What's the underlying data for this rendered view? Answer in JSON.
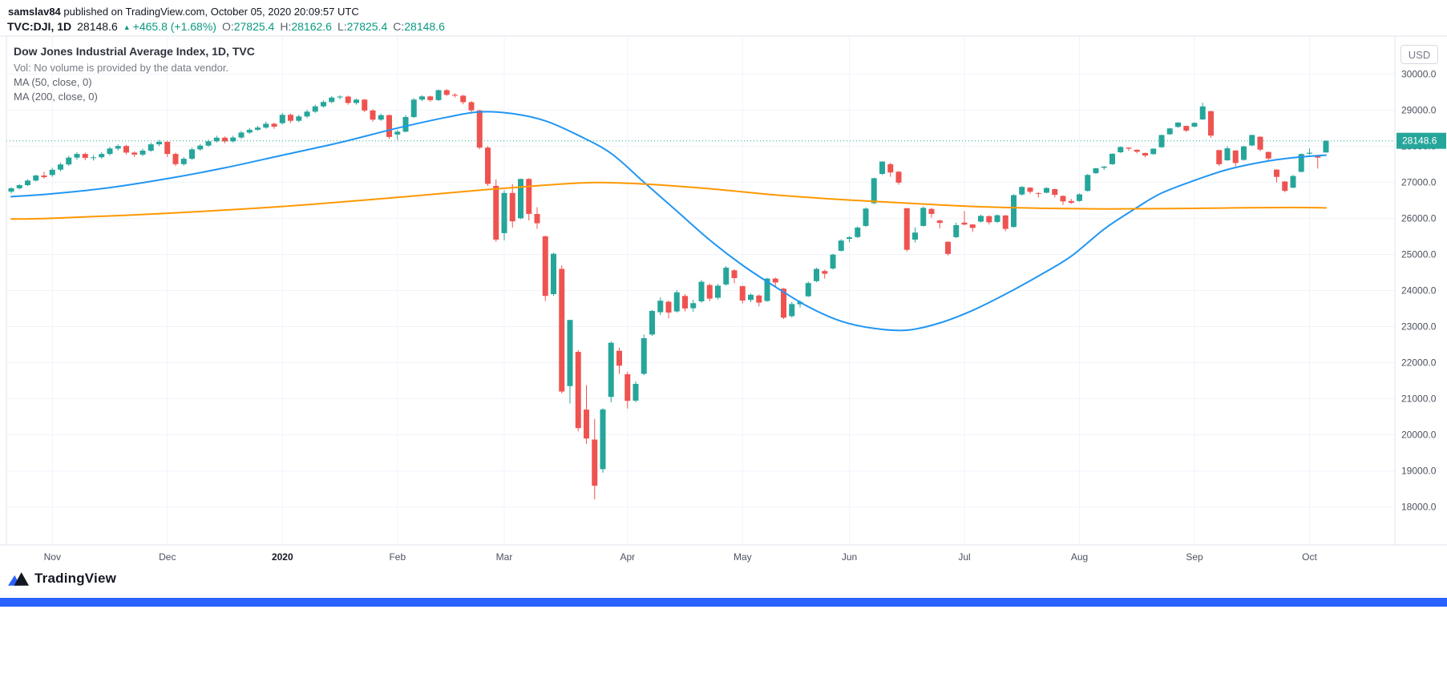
{
  "publish_bar": {
    "username": "samslav84",
    "text": " published on TradingView.com, October 05, 2020 20:09:57 UTC"
  },
  "symbol_bar": {
    "symbol": "TVC:DJI, 1D",
    "last_price": "28148.6",
    "up_triangle": "▲",
    "change": "+465.8 (+1.68%)",
    "ohlc": [
      {
        "label": "O:",
        "value": "27825.4"
      },
      {
        "label": "H:",
        "value": "28162.6"
      },
      {
        "label": "L:",
        "value": "27825.4"
      },
      {
        "label": "C:",
        "value": "28148.6"
      }
    ]
  },
  "legend": {
    "title": "Dow Jones Industrial Average Index, 1D, TVC",
    "volume_note": "Vol: No volume is provided by the data vendor.",
    "ma50_label": "MA (50, close, 0)",
    "ma200_label": "MA (200, close, 0)"
  },
  "price_axis": {
    "currency": "USD",
    "last_price_label": "28148.6"
  },
  "footer": {
    "logo_text": "TradingView"
  },
  "colors": {
    "up": "#26a69a",
    "down": "#ef5350",
    "ma50": "#2196f3",
    "ma200": "#ff9800",
    "positive_text": "#089981",
    "grid": "#f0f3fa",
    "border": "#e0e3eb",
    "accent_bar": "#2962ff",
    "last_price_badge": "#26a69a"
  },
  "chart_data": {
    "type": "candlestick",
    "title": "Dow Jones Industrial Average Index, 1D, TVC",
    "symbol": "TVC:DJI",
    "interval": "1D",
    "currency": "USD",
    "grid": true,
    "legend_position": "top-left",
    "x_range": [
      "Late Oct 2019",
      "Oct 05 2020"
    ],
    "y_axis": {
      "min": 16950,
      "max": 31050,
      "tick_step": 1000,
      "tick_labels": [
        "30000.0",
        "29000.0",
        "28000.0",
        "27000.0",
        "26000.0",
        "25000.0",
        "24000.0",
        "23000.0",
        "22000.0",
        "21000.0",
        "20000.0",
        "19000.0",
        "18000.0"
      ]
    },
    "last_price": 28148.6,
    "month_ticks": [
      {
        "i": 5,
        "label": "Nov"
      },
      {
        "i": 19,
        "label": "Dec"
      },
      {
        "i": 33,
        "label": "2020",
        "year": true
      },
      {
        "i": 47,
        "label": "Feb"
      },
      {
        "i": 60,
        "label": "Mar"
      },
      {
        "i": 75,
        "label": "Apr"
      },
      {
        "i": 89,
        "label": "May"
      },
      {
        "i": 102,
        "label": "Jun"
      },
      {
        "i": 116,
        "label": "Jul"
      },
      {
        "i": 130,
        "label": "Aug"
      },
      {
        "i": 144,
        "label": "Sep"
      },
      {
        "i": 158,
        "label": "Oct"
      }
    ],
    "candles_ohlc": [
      [
        26740,
        26860,
        26690,
        26833
      ],
      [
        26833,
        26950,
        26800,
        26920
      ],
      [
        26920,
        27080,
        26890,
        27046
      ],
      [
        27046,
        27210,
        27020,
        27186
      ],
      [
        27186,
        27290,
        27100,
        27140
      ],
      [
        27200,
        27400,
        27150,
        27347
      ],
      [
        27347,
        27540,
        27300,
        27492
      ],
      [
        27492,
        27730,
        27450,
        27681
      ],
      [
        27681,
        27830,
        27620,
        27783
      ],
      [
        27783,
        27820,
        27610,
        27675
      ],
      [
        27675,
        27750,
        27600,
        27691
      ],
      [
        27691,
        27840,
        27650,
        27783
      ],
      [
        27783,
        27980,
        27740,
        27934
      ],
      [
        27934,
        28050,
        27880,
        28004
      ],
      [
        28004,
        28040,
        27770,
        27821
      ],
      [
        27821,
        27860,
        27700,
        27766
      ],
      [
        27766,
        27930,
        27720,
        27876
      ],
      [
        27876,
        28100,
        27840,
        28051
      ],
      [
        28051,
        28175,
        28000,
        28121
      ],
      [
        28121,
        28130,
        27700,
        27783
      ],
      [
        27783,
        27820,
        27450,
        27502
      ],
      [
        27502,
        27700,
        27460,
        27650
      ],
      [
        27650,
        27960,
        27620,
        27910
      ],
      [
        27910,
        28060,
        27870,
        28015
      ],
      [
        28015,
        28180,
        27980,
        28135
      ],
      [
        28135,
        28290,
        28100,
        28235
      ],
      [
        28235,
        28270,
        28080,
        28132
      ],
      [
        28132,
        28290,
        28100,
        28239
      ],
      [
        28239,
        28420,
        28200,
        28376
      ],
      [
        28376,
        28500,
        28340,
        28455
      ],
      [
        28455,
        28560,
        28420,
        28515
      ],
      [
        28515,
        28680,
        28480,
        28621
      ],
      [
        28621,
        28650,
        28480,
        28538
      ],
      [
        28638,
        28920,
        28600,
        28868
      ],
      [
        28868,
        28900,
        28640,
        28703
      ],
      [
        28703,
        28870,
        28660,
        28823
      ],
      [
        28823,
        29010,
        28780,
        28956
      ],
      [
        28956,
        29150,
        28920,
        29103
      ],
      [
        29103,
        29270,
        29070,
        29223
      ],
      [
        29223,
        29390,
        29190,
        29348
      ],
      [
        29348,
        29410,
        29300,
        29373
      ],
      [
        29373,
        29400,
        29150,
        29196
      ],
      [
        29196,
        29320,
        29150,
        29290
      ],
      [
        29290,
        29310,
        28940,
        28989
      ],
      [
        28989,
        29020,
        28680,
        28734
      ],
      [
        28734,
        28900,
        28700,
        28859
      ],
      [
        28859,
        28880,
        28200,
        28256
      ],
      [
        28320,
        28450,
        28170,
        28400
      ],
      [
        28400,
        28860,
        28380,
        28807
      ],
      [
        28807,
        29330,
        28780,
        29290
      ],
      [
        29290,
        29410,
        29250,
        29379
      ],
      [
        29379,
        29400,
        29230,
        29276
      ],
      [
        29276,
        29569,
        29250,
        29551
      ],
      [
        29551,
        29580,
        29390,
        29423
      ],
      [
        29423,
        29470,
        29350,
        29398
      ],
      [
        29398,
        29420,
        29160,
        29219
      ],
      [
        29219,
        29250,
        28900,
        28992
      ],
      [
        28992,
        29000,
        27910,
        27960
      ],
      [
        27960,
        28000,
        26900,
        26957
      ],
      [
        26900,
        27080,
        25350,
        25409
      ],
      [
        25590,
        26780,
        25390,
        26703
      ],
      [
        26703,
        26950,
        25740,
        25917
      ],
      [
        26000,
        27100,
        25980,
        27090
      ],
      [
        27090,
        27110,
        25940,
        26121
      ],
      [
        26121,
        26310,
        25710,
        25864
      ],
      [
        25500,
        25520,
        23710,
        23851
      ],
      [
        23900,
        25050,
        23850,
        25018
      ],
      [
        24600,
        24700,
        21150,
        21200
      ],
      [
        21350,
        23190,
        20870,
        23185
      ],
      [
        22300,
        22350,
        20100,
        20188
      ],
      [
        20700,
        21380,
        19750,
        19898
      ],
      [
        19870,
        20440,
        18213,
        18591
      ],
      [
        19050,
        20740,
        18950,
        20704
      ],
      [
        21050,
        22590,
        20900,
        22552
      ],
      [
        22330,
        22420,
        21690,
        21917
      ],
      [
        21680,
        21750,
        20730,
        20943
      ],
      [
        20950,
        21480,
        20900,
        21413
      ],
      [
        21690,
        22780,
        21650,
        22679
      ],
      [
        22780,
        23460,
        22740,
        23433
      ],
      [
        23400,
        23810,
        23320,
        23719
      ],
      [
        23690,
        23720,
        23230,
        23390
      ],
      [
        23420,
        24010,
        23390,
        23949
      ],
      [
        23850,
        23900,
        23420,
        23504
      ],
      [
        23510,
        23740,
        23410,
        23650
      ],
      [
        23700,
        24290,
        23660,
        24242
      ],
      [
        24150,
        24190,
        23700,
        23775
      ],
      [
        23800,
        24180,
        23750,
        24133
      ],
      [
        24170,
        24680,
        24130,
        24633
      ],
      [
        24560,
        24590,
        24200,
        24345
      ],
      [
        24120,
        24140,
        23640,
        23723
      ],
      [
        23740,
        23920,
        23680,
        23883
      ],
      [
        23860,
        23890,
        23560,
        23664
      ],
      [
        23710,
        24350,
        23690,
        24331
      ],
      [
        24330,
        24360,
        24090,
        24221
      ],
      [
        24050,
        24070,
        23210,
        23247
      ],
      [
        23290,
        23680,
        23250,
        23625
      ],
      [
        23620,
        23730,
        23530,
        23685
      ],
      [
        23840,
        24250,
        23820,
        24206
      ],
      [
        24260,
        24630,
        24230,
        24597
      ],
      [
        24540,
        24580,
        24330,
        24465
      ],
      [
        24610,
        25020,
        24580,
        24995
      ],
      [
        25100,
        25420,
        25080,
        25383
      ],
      [
        25430,
        25510,
        25340,
        25475
      ],
      [
        25480,
        25780,
        25450,
        25742
      ],
      [
        25790,
        26300,
        25760,
        26269
      ],
      [
        26420,
        27130,
        26390,
        27110
      ],
      [
        27230,
        27580,
        27200,
        27572
      ],
      [
        27500,
        27540,
        27150,
        27272
      ],
      [
        27290,
        27310,
        26930,
        26989
      ],
      [
        26280,
        26290,
        25080,
        25128
      ],
      [
        25410,
        25750,
        25330,
        25605
      ],
      [
        25790,
        26330,
        25770,
        26289
      ],
      [
        26260,
        26290,
        26020,
        26119
      ],
      [
        25940,
        25960,
        25720,
        25871
      ],
      [
        25350,
        25360,
        24970,
        25015
      ],
      [
        25480,
        25880,
        25450,
        25812
      ],
      [
        25880,
        26200,
        25800,
        25827
      ],
      [
        25830,
        25840,
        25620,
        25734
      ],
      [
        25910,
        26100,
        25880,
        26067
      ],
      [
        26060,
        26080,
        25830,
        25890
      ],
      [
        25900,
        26110,
        25870,
        26085
      ],
      [
        26080,
        26090,
        25640,
        25706
      ],
      [
        25760,
        26670,
        25740,
        26642
      ],
      [
        26660,
        26890,
        26630,
        26870
      ],
      [
        26850,
        26860,
        26680,
        26734
      ],
      [
        26700,
        26720,
        26580,
        26680
      ],
      [
        26710,
        26860,
        26690,
        26840
      ],
      [
        26810,
        26820,
        26580,
        26652
      ],
      [
        26620,
        26640,
        26370,
        26469
      ],
      [
        26480,
        26540,
        26400,
        26428
      ],
      [
        26480,
        26690,
        26460,
        26664
      ],
      [
        26760,
        27230,
        26740,
        27201
      ],
      [
        27250,
        27400,
        27230,
        27386
      ],
      [
        27400,
        27450,
        27340,
        27433
      ],
      [
        27500,
        27800,
        27480,
        27791
      ],
      [
        27830,
        27990,
        27810,
        27976
      ],
      [
        27960,
        27970,
        27870,
        27931
      ],
      [
        27900,
        27910,
        27800,
        27844
      ],
      [
        27810,
        27820,
        27690,
        27739
      ],
      [
        27780,
        27940,
        27760,
        27930
      ],
      [
        27970,
        28320,
        27950,
        28308
      ],
      [
        28330,
        28500,
        28310,
        28492
      ],
      [
        28530,
        28660,
        28510,
        28653
      ],
      [
        28560,
        28570,
        28390,
        28430
      ],
      [
        28540,
        28660,
        28520,
        28645
      ],
      [
        28740,
        29200,
        28720,
        29100
      ],
      [
        28970,
        28980,
        28230,
        28292
      ],
      [
        27890,
        27900,
        27450,
        27500
      ],
      [
        27610,
        28000,
        27590,
        27940
      ],
      [
        27880,
        27890,
        27440,
        27534
      ],
      [
        27620,
        28010,
        27600,
        27993
      ],
      [
        28020,
        28320,
        28000,
        28308
      ],
      [
        28260,
        28270,
        27860,
        27902
      ],
      [
        27840,
        27850,
        27600,
        27657
      ],
      [
        27350,
        27360,
        26990,
        27147
      ],
      [
        27020,
        27030,
        26720,
        26763
      ],
      [
        26850,
        27200,
        26830,
        27174
      ],
      [
        27290,
        27800,
        27270,
        27782
      ],
      [
        27790,
        27940,
        27760,
        27817
      ],
      [
        27740,
        27750,
        27380,
        27683
      ],
      [
        27825.4,
        28162.6,
        27825.4,
        28148.6
      ]
    ],
    "overlays": [
      {
        "id": "ma50",
        "name": "MA (50, close, 0)",
        "color": "#2196f3",
        "points": [
          [
            0,
            26600
          ],
          [
            5,
            26680
          ],
          [
            12,
            26850
          ],
          [
            19,
            27100
          ],
          [
            26,
            27400
          ],
          [
            33,
            27750
          ],
          [
            40,
            28100
          ],
          [
            47,
            28500
          ],
          [
            53,
            28800
          ],
          [
            57,
            28950
          ],
          [
            61,
            28900
          ],
          [
            65,
            28700
          ],
          [
            69,
            28300
          ],
          [
            73,
            27800
          ],
          [
            77,
            27000
          ],
          [
            81,
            26200
          ],
          [
            85,
            25400
          ],
          [
            89,
            24700
          ],
          [
            93,
            24100
          ],
          [
            97,
            23550
          ],
          [
            101,
            23150
          ],
          [
            105,
            22950
          ],
          [
            109,
            22900
          ],
          [
            113,
            23100
          ],
          [
            117,
            23450
          ],
          [
            121,
            23900
          ],
          [
            125,
            24400
          ],
          [
            129,
            24950
          ],
          [
            133,
            25700
          ],
          [
            137,
            26300
          ],
          [
            140,
            26700
          ],
          [
            144,
            27050
          ],
          [
            148,
            27350
          ],
          [
            152,
            27550
          ],
          [
            156,
            27680
          ],
          [
            160,
            27750
          ]
        ]
      },
      {
        "id": "ma200",
        "name": "MA (200, close, 0)",
        "color": "#ff9800",
        "points": [
          [
            0,
            25980
          ],
          [
            5,
            26000
          ],
          [
            19,
            26140
          ],
          [
            33,
            26330
          ],
          [
            47,
            26580
          ],
          [
            57,
            26780
          ],
          [
            65,
            26920
          ],
          [
            71,
            26990
          ],
          [
            77,
            26950
          ],
          [
            85,
            26820
          ],
          [
            93,
            26650
          ],
          [
            101,
            26520
          ],
          [
            109,
            26420
          ],
          [
            117,
            26330
          ],
          [
            125,
            26280
          ],
          [
            133,
            26260
          ],
          [
            141,
            26270
          ],
          [
            149,
            26290
          ],
          [
            156,
            26300
          ],
          [
            160,
            26290
          ]
        ]
      }
    ]
  }
}
